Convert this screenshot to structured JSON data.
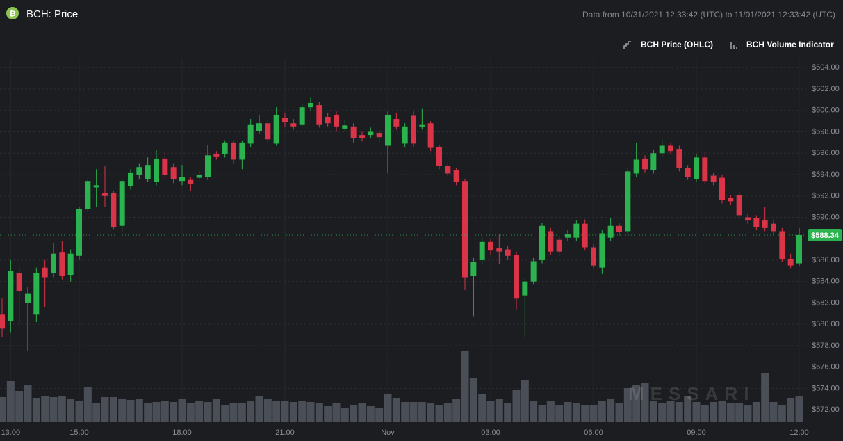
{
  "chart_data": {
    "type": "candlestick",
    "title": "BCH: Price",
    "subtitle": "Data from 10/31/2021 12:33:42 (UTC) to 11/01/2021 12:33:42 (UTC)",
    "watermark": "MESSARI",
    "categories": [
      null,
      "13:00",
      null,
      null,
      null,
      null,
      null,
      null,
      null,
      "15:00",
      null,
      null,
      null,
      null,
      null,
      null,
      null,
      null,
      null,
      null,
      null,
      "18:00",
      null,
      null,
      null,
      null,
      null,
      null,
      null,
      null,
      null,
      null,
      null,
      "21:00",
      null,
      null,
      null,
      null,
      null,
      null,
      null,
      null,
      null,
      null,
      null,
      "Nov",
      null,
      null,
      null,
      null,
      null,
      null,
      null,
      null,
      null,
      null,
      null,
      "03:00",
      null,
      null,
      null,
      null,
      null,
      null,
      null,
      null,
      null,
      null,
      null,
      "06:00",
      null,
      null,
      null,
      null,
      null,
      null,
      null,
      null,
      null,
      null,
      null,
      "09:00",
      null,
      null,
      null,
      null,
      null,
      null,
      null,
      null,
      null,
      null,
      null,
      "12:00"
    ],
    "series": [
      {
        "name": "BCH Price (OHLC)",
        "type": "candlestick",
        "up_color": "#2bb34f",
        "down_color": "#d93448",
        "open": [
          580.9,
          580.3,
          584.8,
          582.0,
          580.9,
          585.3,
          584.8,
          586.7,
          584.6,
          586.4,
          590.8,
          592.8,
          592.3,
          592.3,
          589.2,
          592.9,
          594.0,
          593.6,
          593.3,
          595.5,
          594.7,
          593.4,
          593.5,
          593.7,
          593.8,
          595.9,
          595.9,
          597.0,
          595.4,
          596.9,
          598.1,
          598.8,
          596.9,
          599.3,
          598.8,
          598.7,
          600.3,
          600.5,
          599.4,
          599.6,
          598.3,
          598.5,
          597.7,
          597.7,
          597.9,
          596.7,
          599.2,
          596.9,
          599.5,
          598.5,
          598.8,
          596.6,
          594.8,
          594.4,
          593.4,
          584.5,
          586.0,
          587.7,
          587.1,
          587.0,
          586.5,
          582.7,
          584.0,
          586.0,
          588.7,
          587.9,
          588.1,
          588.1,
          589.4,
          587.2,
          585.3,
          588.1,
          589.2,
          588.7,
          594.1,
          595.5,
          594.4,
          596.0,
          596.7,
          596.4,
          594.6,
          593.6,
          595.6,
          593.9,
          593.7,
          591.8,
          592.1,
          590.0,
          589.9,
          589.7,
          589.4,
          588.7,
          586.1,
          585.7
        ],
        "high": [
          582.4,
          586.0,
          585.3,
          583.5,
          585.3,
          586.0,
          587.6,
          587.8,
          587.0,
          591.0,
          593.6,
          594.5,
          594.8,
          592.5,
          593.6,
          594.5,
          595.0,
          595.6,
          596.3,
          596.2,
          595.0,
          594.9,
          593.8,
          594.3,
          596.8,
          596.2,
          597.2,
          597.2,
          597.2,
          599.2,
          599.6,
          599.2,
          600.3,
          599.8,
          599.2,
          600.6,
          601.2,
          600.8,
          599.8,
          599.9,
          599.1,
          598.8,
          598.0,
          598.4,
          598.2,
          599.9,
          599.8,
          598.8,
          599.9,
          600.2,
          599.0,
          596.8,
          595.1,
          594.6,
          593.6,
          586.2,
          588.1,
          588.0,
          588.4,
          587.3,
          586.8,
          584.3,
          586.2,
          589.5,
          589.0,
          588.2,
          588.8,
          589.7,
          589.8,
          587.5,
          588.8,
          589.9,
          589.5,
          594.6,
          597.0,
          595.8,
          596.3,
          597.3,
          597.0,
          596.7,
          594.9,
          595.9,
          596.2,
          594.2,
          594.0,
          592.1,
          592.4,
          590.3,
          590.2,
          591.0,
          589.7,
          589.0,
          586.6,
          589.0
        ],
        "low": [
          578.8,
          579.2,
          580.0,
          577.5,
          580.2,
          581.6,
          584.4,
          584.2,
          584.0,
          586.0,
          590.5,
          591.0,
          591.0,
          588.9,
          588.6,
          592.6,
          593.6,
          593.3,
          593.0,
          593.6,
          593.2,
          593.0,
          592.5,
          593.5,
          593.5,
          595.4,
          595.6,
          595.0,
          594.5,
          596.6,
          597.8,
          597.0,
          596.7,
          598.5,
          598.2,
          598.5,
          600.0,
          598.4,
          598.5,
          598.0,
          598.0,
          597.0,
          597.1,
          597.4,
          597.0,
          594.2,
          598.2,
          596.6,
          596.6,
          598.2,
          596.2,
          594.5,
          593.8,
          593.0,
          583.2,
          580.7,
          585.6,
          586.5,
          585.6,
          586.0,
          581.4,
          578.8,
          583.7,
          585.7,
          586.5,
          586.4,
          587.8,
          587.8,
          586.9,
          585.2,
          584.7,
          587.8,
          588.3,
          588.4,
          593.8,
          594.2,
          594.1,
          595.7,
          595.9,
          594.3,
          593.5,
          593.3,
          593.1,
          593.0,
          591.3,
          591.2,
          589.9,
          589.4,
          588.8,
          588.7,
          588.4,
          585.8,
          585.2,
          585.4
        ],
        "close": [
          579.6,
          585.0,
          583.1,
          582.9,
          584.8,
          584.4,
          586.6,
          584.5,
          586.6,
          590.8,
          593.4,
          593.0,
          592.0,
          589.1,
          593.4,
          594.2,
          594.7,
          594.9,
          595.5,
          594.0,
          593.6,
          593.8,
          593.1,
          594.0,
          595.8,
          595.7,
          597.0,
          595.4,
          597.0,
          598.7,
          598.8,
          597.3,
          599.6,
          598.9,
          598.5,
          600.3,
          600.7,
          598.7,
          598.8,
          598.5,
          598.6,
          597.4,
          597.4,
          598.0,
          597.5,
          599.6,
          598.5,
          598.5,
          596.9,
          598.7,
          596.5,
          594.8,
          594.1,
          593.3,
          584.4,
          585.8,
          587.7,
          586.9,
          586.8,
          586.4,
          582.4,
          584.0,
          585.9,
          589.2,
          586.8,
          586.8,
          588.4,
          589.4,
          587.2,
          585.5,
          588.5,
          589.2,
          588.6,
          594.3,
          595.4,
          594.5,
          596.0,
          596.7,
          596.2,
          594.6,
          593.8,
          595.6,
          593.4,
          593.3,
          591.6,
          591.5,
          590.2,
          589.7,
          589.1,
          589.0,
          588.7,
          586.1,
          585.5,
          588.34
        ]
      },
      {
        "name": "BCH Volume Indicator",
        "type": "bar",
        "axis": "y2",
        "color": "#4a4e56",
        "values": [
          35,
          58,
          44,
          52,
          34,
          37,
          35,
          37,
          32,
          30,
          50,
          27,
          35,
          35,
          33,
          31,
          33,
          26,
          28,
          30,
          28,
          32,
          27,
          30,
          28,
          32,
          24,
          26,
          27,
          30,
          37,
          32,
          30,
          29,
          28,
          30,
          28,
          26,
          22,
          26,
          20,
          24,
          26,
          23,
          20,
          40,
          34,
          28,
          28,
          28,
          26,
          24,
          26,
          32,
          101,
          62,
          40,
          30,
          32,
          26,
          46,
          60,
          30,
          24,
          30,
          24,
          28,
          26,
          24,
          24,
          30,
          32,
          26,
          48,
          52,
          55,
          30,
          26,
          30,
          28,
          36,
          28,
          24,
          28,
          30,
          26,
          26,
          24,
          28,
          70,
          28,
          24,
          34,
          36
        ]
      }
    ],
    "ylim": [
      570.9,
      604.8
    ],
    "yticks": [
      {
        "value": 572,
        "label": "$572.00"
      },
      {
        "value": 574,
        "label": "$574.00"
      },
      {
        "value": 576,
        "label": "$576.00"
      },
      {
        "value": 578,
        "label": "$578.00"
      },
      {
        "value": 580,
        "label": "$580.00"
      },
      {
        "value": 582,
        "label": "$582.00"
      },
      {
        "value": 584,
        "label": "$584.00"
      },
      {
        "value": 586,
        "label": "$586.00"
      },
      {
        "value": 588,
        "label": "$588.00"
      },
      {
        "value": 590,
        "label": "$590.00"
      },
      {
        "value": 592,
        "label": "$592.00"
      },
      {
        "value": 594,
        "label": "$594.00"
      },
      {
        "value": 596,
        "label": "$596.00"
      },
      {
        "value": 598,
        "label": "$598.00"
      },
      {
        "value": 600,
        "label": "$600.00"
      },
      {
        "value": 602,
        "label": "$602.00"
      },
      {
        "value": 604,
        "label": "$604.00"
      }
    ],
    "y2lim": [
      0,
      521
    ],
    "price_line": {
      "value": 588.34,
      "label": "$588.34",
      "color": "#2bb34f"
    },
    "grid": true
  }
}
